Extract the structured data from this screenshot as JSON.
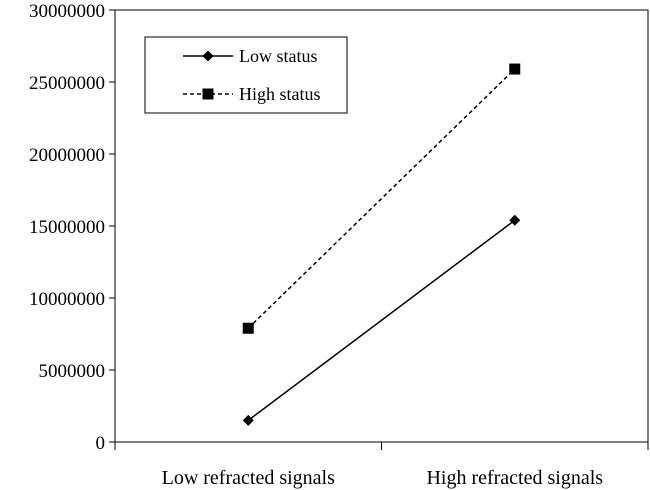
{
  "chart_data": {
    "type": "line",
    "title": "",
    "xlabel": "",
    "ylabel": "",
    "categories": [
      "Low refracted signals",
      "High refracted signals"
    ],
    "ylim": [
      0,
      30000000
    ],
    "yticks": [
      0,
      5000000,
      10000000,
      15000000,
      20000000,
      25000000,
      30000000
    ],
    "grid": false,
    "legend_position": "top-left",
    "series": [
      {
        "name": "Low status",
        "values": [
          1500000,
          15400000
        ],
        "line_style": "solid",
        "marker": "diamond",
        "color": "#000000"
      },
      {
        "name": "High status",
        "values": [
          7900000,
          25900000
        ],
        "line_style": "dashed",
        "marker": "square",
        "color": "#000000"
      }
    ]
  }
}
